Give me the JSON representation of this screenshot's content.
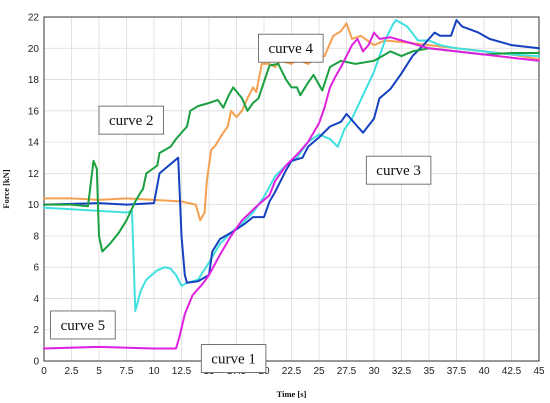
{
  "chart_data": {
    "type": "line",
    "xlabel": "Time [s]",
    "ylabel": "Force [kN]",
    "xlim": [
      0,
      45
    ],
    "ylim": [
      0,
      22
    ],
    "xticks": [
      0,
      2.5,
      5,
      7.5,
      10,
      12.5,
      15,
      17.5,
      20,
      22.5,
      25,
      27.5,
      30,
      32.5,
      35,
      37.5,
      40,
      42.5,
      45
    ],
    "xtick_labels": [
      "0",
      "2.5",
      "5",
      "7.5",
      "10",
      "12.5",
      "15",
      "17.5",
      "20",
      "22.5",
      "25",
      "27.5",
      "30",
      "32.5",
      "35",
      "37.5",
      "40",
      "42.5",
      "45"
    ],
    "yticks": [
      0,
      2,
      4,
      6,
      8,
      10,
      12,
      14,
      16,
      18,
      20,
      22
    ],
    "ytick_labels": [
      "0",
      "2",
      "4",
      "6",
      "8",
      "10",
      "12",
      "14",
      "16",
      "18",
      "20",
      "22"
    ],
    "grid": true,
    "legend": "none",
    "series": [
      {
        "name": "curve 1",
        "color": "#e020e0",
        "points": [
          [
            0,
            0.8
          ],
          [
            5,
            0.9
          ],
          [
            10,
            0.8
          ],
          [
            12,
            0.8
          ],
          [
            12.3,
            1.5
          ],
          [
            12.8,
            3.0
          ],
          [
            13.5,
            4.2
          ],
          [
            14.5,
            5.0
          ],
          [
            15,
            5.5
          ],
          [
            16,
            6.8
          ],
          [
            17,
            8.0
          ],
          [
            18,
            9.0
          ],
          [
            19.5,
            10.0
          ],
          [
            20.5,
            10.6
          ],
          [
            21,
            11.5
          ],
          [
            22,
            12.5
          ],
          [
            23,
            13.2
          ],
          [
            24,
            14.0
          ],
          [
            25,
            15.2
          ],
          [
            25.5,
            16.2
          ],
          [
            26,
            17.5
          ],
          [
            26.5,
            18.2
          ],
          [
            27,
            18.8
          ],
          [
            27.5,
            19.5
          ],
          [
            28,
            20.2
          ],
          [
            28.5,
            20.6
          ],
          [
            29,
            19.8
          ],
          [
            29.5,
            20.2
          ],
          [
            30,
            21.0
          ],
          [
            30.5,
            20.6
          ],
          [
            31.5,
            20.7
          ],
          [
            33,
            20.4
          ],
          [
            35,
            20.0
          ],
          [
            37.5,
            19.8
          ],
          [
            40,
            19.6
          ],
          [
            42.5,
            19.4
          ],
          [
            45,
            19.2
          ]
        ]
      },
      {
        "name": "curve 2",
        "color": "#1aa040",
        "points": [
          [
            0,
            10.0
          ],
          [
            2.5,
            10.0
          ],
          [
            4,
            9.9
          ],
          [
            4.5,
            12.8
          ],
          [
            4.8,
            12.3
          ],
          [
            5,
            8.0
          ],
          [
            5.3,
            7.0
          ],
          [
            6,
            7.5
          ],
          [
            6.8,
            8.2
          ],
          [
            7.5,
            9.0
          ],
          [
            8.3,
            10.2
          ],
          [
            8.8,
            10.8
          ],
          [
            9,
            11.0
          ],
          [
            9.3,
            12.0
          ],
          [
            10.3,
            12.5
          ],
          [
            10.5,
            13.3
          ],
          [
            11.5,
            13.7
          ],
          [
            12,
            14.2
          ],
          [
            13,
            15.0
          ],
          [
            13.3,
            16.0
          ],
          [
            14,
            16.3
          ],
          [
            15,
            16.5
          ],
          [
            15.8,
            16.7
          ],
          [
            16.3,
            16.2
          ],
          [
            16.8,
            17.0
          ],
          [
            17.2,
            17.5
          ],
          [
            18,
            16.8
          ],
          [
            18.5,
            16.0
          ],
          [
            19,
            16.5
          ],
          [
            19.5,
            16.8
          ],
          [
            20.5,
            18.9
          ],
          [
            21.3,
            19.0
          ],
          [
            22,
            18.0
          ],
          [
            22.5,
            17.5
          ],
          [
            23,
            17.5
          ],
          [
            23.3,
            17.0
          ],
          [
            24,
            17.8
          ],
          [
            24.5,
            18.3
          ],
          [
            25.3,
            17.3
          ],
          [
            26,
            18.8
          ],
          [
            27,
            19.2
          ],
          [
            28.3,
            19.0
          ],
          [
            30,
            19.2
          ],
          [
            31.5,
            19.8
          ],
          [
            32.5,
            19.5
          ],
          [
            33.5,
            19.8
          ],
          [
            35,
            20.0
          ],
          [
            37.5,
            19.8
          ],
          [
            40,
            19.6
          ],
          [
            42.5,
            19.7
          ],
          [
            45,
            19.7
          ]
        ]
      },
      {
        "name": "curve 3",
        "color": "#1540c0",
        "points": [
          [
            0,
            10.0
          ],
          [
            5,
            10.1
          ],
          [
            7.5,
            10.0
          ],
          [
            10,
            10.1
          ],
          [
            10.5,
            12.0
          ],
          [
            12.2,
            13.0
          ],
          [
            12.5,
            8.0
          ],
          [
            12.8,
            5.5
          ],
          [
            13,
            5.0
          ],
          [
            14,
            5.1
          ],
          [
            15,
            5.5
          ],
          [
            15.3,
            7.0
          ],
          [
            16,
            7.8
          ],
          [
            17,
            8.2
          ],
          [
            18.3,
            8.8
          ],
          [
            19,
            9.2
          ],
          [
            20,
            9.2
          ],
          [
            20.5,
            10.2
          ],
          [
            21,
            10.8
          ],
          [
            21.5,
            11.5
          ],
          [
            22,
            12.2
          ],
          [
            22.5,
            12.8
          ],
          [
            23.5,
            13.0
          ],
          [
            24,
            13.7
          ],
          [
            25,
            14.3
          ],
          [
            26,
            15.0
          ],
          [
            27,
            15.3
          ],
          [
            27.5,
            15.8
          ],
          [
            28.5,
            15.0
          ],
          [
            29,
            14.6
          ],
          [
            30,
            15.5
          ],
          [
            30.5,
            16.8
          ],
          [
            31.5,
            17.4
          ],
          [
            32.5,
            18.4
          ],
          [
            33.5,
            19.5
          ],
          [
            34.5,
            20.2
          ],
          [
            35.5,
            21.0
          ],
          [
            36,
            20.8
          ],
          [
            37,
            20.8
          ],
          [
            37.5,
            21.8
          ],
          [
            38,
            21.4
          ],
          [
            39.5,
            21.0
          ],
          [
            40.5,
            20.6
          ],
          [
            42.5,
            20.2
          ],
          [
            45,
            20.0
          ]
        ]
      },
      {
        "name": "curve 4",
        "color": "#f5a050",
        "points": [
          [
            0,
            10.4
          ],
          [
            2.5,
            10.4
          ],
          [
            5,
            10.3
          ],
          [
            7.5,
            10.4
          ],
          [
            10,
            10.3
          ],
          [
            12.5,
            10.2
          ],
          [
            13.8,
            10.0
          ],
          [
            14.2,
            9.0
          ],
          [
            14.6,
            9.5
          ],
          [
            14.8,
            11.5
          ],
          [
            15.2,
            13.5
          ],
          [
            15.6,
            13.8
          ],
          [
            16.2,
            14.5
          ],
          [
            16.7,
            15.0
          ],
          [
            17,
            16.0
          ],
          [
            17.5,
            15.6
          ],
          [
            18,
            16.0
          ],
          [
            18.5,
            16.8
          ],
          [
            19,
            17.5
          ],
          [
            19.3,
            17.2
          ],
          [
            19.8,
            19.0
          ],
          [
            20.5,
            19.0
          ],
          [
            21,
            18.8
          ],
          [
            21.5,
            19.2
          ],
          [
            22.5,
            19.0
          ],
          [
            23,
            19.3
          ],
          [
            24,
            19.0
          ],
          [
            25,
            19.5
          ],
          [
            25.5,
            19.5
          ],
          [
            26.3,
            20.8
          ],
          [
            27,
            21.1
          ],
          [
            27.5,
            21.6
          ],
          [
            28,
            20.6
          ],
          [
            28.8,
            20.8
          ],
          [
            30,
            20.2
          ],
          [
            31,
            20.5
          ],
          [
            32.5,
            20.4
          ],
          [
            35,
            20.2
          ],
          [
            37.5,
            20.0
          ],
          [
            40,
            19.8
          ],
          [
            42.5,
            19.6
          ],
          [
            45,
            19.3
          ]
        ]
      },
      {
        "name": "curve 5",
        "color": "#40e0e0",
        "points": [
          [
            0,
            9.8
          ],
          [
            2.5,
            9.7
          ],
          [
            5,
            9.6
          ],
          [
            7.5,
            9.5
          ],
          [
            8,
            9.6
          ],
          [
            8.3,
            3.2
          ],
          [
            8.8,
            4.5
          ],
          [
            9.3,
            5.2
          ],
          [
            10.3,
            5.8
          ],
          [
            11,
            6.0
          ],
          [
            11.5,
            5.9
          ],
          [
            12,
            5.5
          ],
          [
            12.5,
            4.8
          ],
          [
            13,
            5.0
          ],
          [
            14,
            5.2
          ],
          [
            15,
            6.3
          ],
          [
            16,
            7.5
          ],
          [
            17,
            8.2
          ],
          [
            18,
            8.8
          ],
          [
            19,
            9.5
          ],
          [
            20,
            10.5
          ],
          [
            21,
            11.8
          ],
          [
            22,
            12.5
          ],
          [
            23,
            13.0
          ],
          [
            24,
            14.0
          ],
          [
            25,
            14.5
          ],
          [
            26,
            14.2
          ],
          [
            26.7,
            13.7
          ],
          [
            27.3,
            14.8
          ],
          [
            28,
            15.5
          ],
          [
            29,
            17.0
          ],
          [
            30,
            18.5
          ],
          [
            31,
            20.5
          ],
          [
            31.7,
            21.5
          ],
          [
            32,
            21.8
          ],
          [
            33,
            21.4
          ],
          [
            34,
            20.5
          ],
          [
            35,
            20.5
          ],
          [
            36,
            20.2
          ],
          [
            37.5,
            20.0
          ],
          [
            40,
            19.8
          ],
          [
            42.5,
            19.6
          ],
          [
            45,
            19.5
          ]
        ]
      }
    ],
    "annotations": [
      {
        "text": "curve 4",
        "x": 19.5,
        "y": 20.9
      },
      {
        "text": "curve 2",
        "x": 5.0,
        "y": 16.3
      },
      {
        "text": "curve 3",
        "x": 29.3,
        "y": 13.1
      },
      {
        "text": "curve 5",
        "x": 0.6,
        "y": 3.2
      },
      {
        "text": "curve 1",
        "x": 14.3,
        "y": 1.05
      }
    ]
  }
}
